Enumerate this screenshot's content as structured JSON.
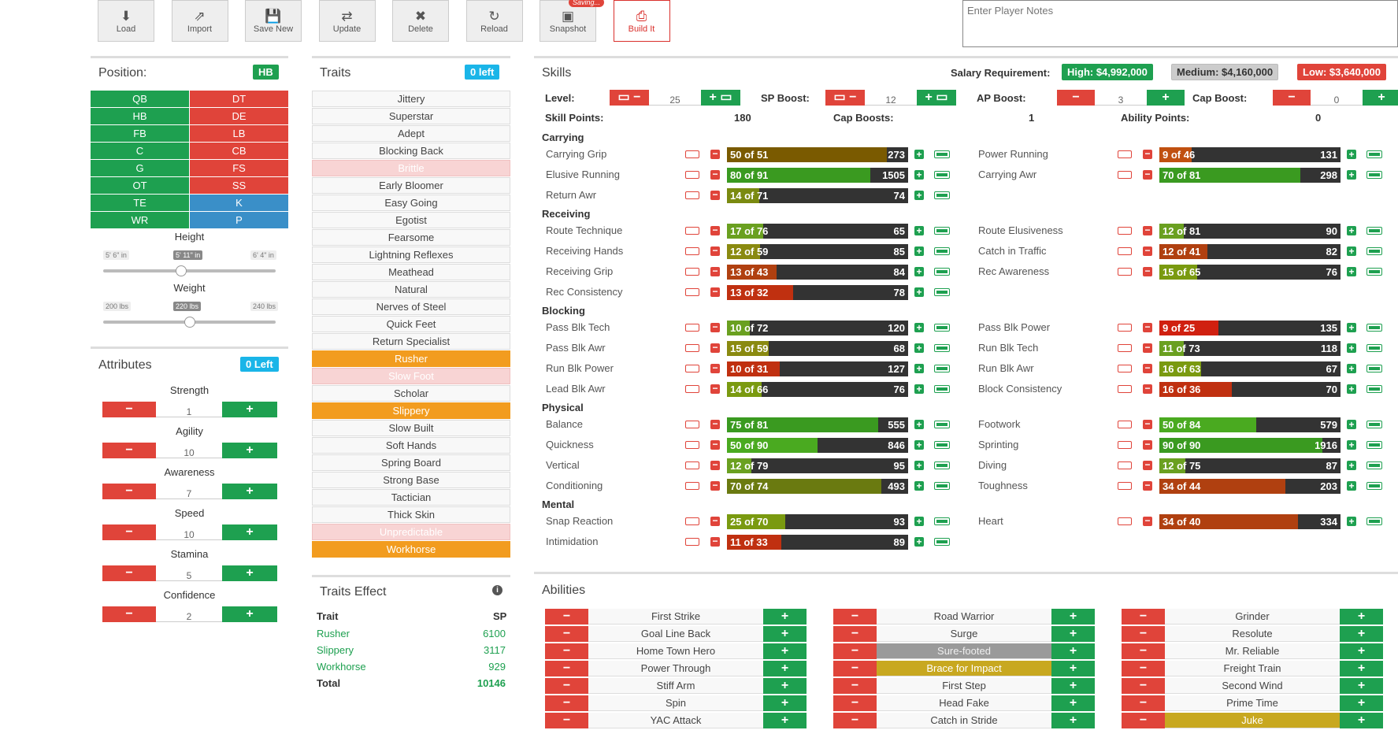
{
  "toolbar": {
    "buttons": [
      {
        "name": "load-button",
        "icon": "download-icon",
        "glyph": "⬇",
        "label": "Load"
      },
      {
        "name": "import-button",
        "icon": "share-icon",
        "glyph": "⇗",
        "label": "Import"
      },
      {
        "name": "save-new-button",
        "icon": "save-icon",
        "glyph": "💾",
        "label": "Save New"
      },
      {
        "name": "update-button",
        "icon": "retweet-icon",
        "glyph": "⇄",
        "label": "Update"
      },
      {
        "name": "delete-button",
        "icon": "close-icon",
        "glyph": "✖",
        "label": "Delete"
      },
      {
        "name": "reload-button",
        "icon": "reload-icon",
        "glyph": "↻",
        "label": "Reload"
      },
      {
        "name": "snapshot-button",
        "icon": "image-icon",
        "glyph": "▣",
        "label": "Snapshot"
      },
      {
        "name": "build-it-button",
        "icon": "print-icon",
        "glyph": "⎙",
        "label": "Build It"
      }
    ],
    "saving_badge": "Saving...",
    "notes_placeholder": "Enter Player Notes"
  },
  "position": {
    "title": "Position:",
    "selected": "HB",
    "grid": [
      [
        "QB",
        "DT"
      ],
      [
        "HB",
        "DE"
      ],
      [
        "FB",
        "LB"
      ],
      [
        "C",
        "CB"
      ],
      [
        "G",
        "FS"
      ],
      [
        "OT",
        "SS"
      ],
      [
        "TE",
        "K"
      ],
      [
        "WR",
        "P"
      ]
    ],
    "height": {
      "label": "Height",
      "min": "5' 6\" in",
      "value": "5' 11\" in",
      "max": "6' 4\" in",
      "fraction": 0.45
    },
    "weight": {
      "label": "Weight",
      "min": "200 lbs",
      "value": "220 lbs",
      "max": "240 lbs",
      "fraction": 0.5
    }
  },
  "attributes": {
    "title": "Attributes",
    "left": "0 Left",
    "items": [
      {
        "label": "Strength",
        "value": "1"
      },
      {
        "label": "Agility",
        "value": "10"
      },
      {
        "label": "Awareness",
        "value": "7"
      },
      {
        "label": "Speed",
        "value": "10"
      },
      {
        "label": "Stamina",
        "value": "5"
      },
      {
        "label": "Confidence",
        "value": "2"
      }
    ]
  },
  "traits": {
    "title": "Traits",
    "left": "0 left",
    "items": [
      {
        "label": "Jittery",
        "state": ""
      },
      {
        "label": "Superstar",
        "state": ""
      },
      {
        "label": "Adept",
        "state": ""
      },
      {
        "label": "Blocking Back",
        "state": ""
      },
      {
        "label": "Brittle",
        "state": "dis"
      },
      {
        "label": "Early Bloomer",
        "state": ""
      },
      {
        "label": "Easy Going",
        "state": ""
      },
      {
        "label": "Egotist",
        "state": ""
      },
      {
        "label": "Fearsome",
        "state": ""
      },
      {
        "label": "Lightning Reflexes",
        "state": ""
      },
      {
        "label": "Meathead",
        "state": ""
      },
      {
        "label": "Natural",
        "state": ""
      },
      {
        "label": "Nerves of Steel",
        "state": ""
      },
      {
        "label": "Quick Feet",
        "state": ""
      },
      {
        "label": "Return Specialist",
        "state": ""
      },
      {
        "label": "Rusher",
        "state": "on"
      },
      {
        "label": "Slow Foot",
        "state": "dis"
      },
      {
        "label": "Scholar",
        "state": ""
      },
      {
        "label": "Slippery",
        "state": "on"
      },
      {
        "label": "Slow Built",
        "state": ""
      },
      {
        "label": "Soft Hands",
        "state": ""
      },
      {
        "label": "Spring Board",
        "state": ""
      },
      {
        "label": "Strong Base",
        "state": ""
      },
      {
        "label": "Tactician",
        "state": ""
      },
      {
        "label": "Thick Skin",
        "state": ""
      },
      {
        "label": "Unpredictable",
        "state": "dis"
      },
      {
        "label": "Workhorse",
        "state": "on"
      }
    ]
  },
  "traits_effect": {
    "title": "Traits Effect",
    "col_trait": "Trait",
    "col_sp": "SP",
    "rows": [
      {
        "trait": "Rusher",
        "sp": "6100"
      },
      {
        "trait": "Slippery",
        "sp": "3117"
      },
      {
        "trait": "Workhorse",
        "sp": "929"
      }
    ],
    "total_label": "Total",
    "total": "10146"
  },
  "skills": {
    "title": "Skills",
    "salary_label": "Salary Requirement:",
    "high": "High: $4,992,000",
    "medium": "Medium: $4,160,000",
    "low": "Low: $3,640,000",
    "level_label": "Level:",
    "level": "25",
    "sp_boost_label": "SP Boost:",
    "sp_boost": "12",
    "ap_boost_label": "AP Boost:",
    "ap_boost": "3",
    "cap_boost_label": "Cap Boost:",
    "cap_boost": "0",
    "skill_points_label": "Skill Points:",
    "skill_points": "180",
    "cap_boosts_label": "Cap Boosts:",
    "cap_boosts": "1",
    "ability_points_label": "Ability Points:",
    "ability_points": "0",
    "groups": [
      {
        "name": "Carrying",
        "left": [
          {
            "n": "Carrying Grip",
            "c": 50,
            "m": 51,
            "v": "273",
            "col": "#7a5a00"
          },
          {
            "n": "Elusive Running",
            "c": 80,
            "m": 91,
            "v": "1505",
            "col": "#3a9a20"
          },
          {
            "n": "Return Awr",
            "c": 14,
            "m": 71,
            "v": "74",
            "col": "#7a8a10"
          }
        ],
        "right": [
          {
            "n": "Power Running",
            "c": 9,
            "m": 46,
            "v": "131",
            "col": "#c05010"
          },
          {
            "n": "Carrying Awr",
            "c": 70,
            "m": 81,
            "v": "298",
            "col": "#3a9a20"
          }
        ]
      },
      {
        "name": "Receiving",
        "left": [
          {
            "n": "Route Technique",
            "c": 17,
            "m": 76,
            "v": "65",
            "col": "#6aa020"
          },
          {
            "n": "Receiving Hands",
            "c": 12,
            "m": 59,
            "v": "85",
            "col": "#8a8a10"
          },
          {
            "n": "Receiving Grip",
            "c": 13,
            "m": 43,
            "v": "84",
            "col": "#b04010"
          },
          {
            "n": "Rec Consistency",
            "c": 13,
            "m": 32,
            "v": "78",
            "col": "#c03010"
          }
        ],
        "right": [
          {
            "n": "Route Elusiveness",
            "c": 12,
            "m": 81,
            "v": "90",
            "col": "#6aa020"
          },
          {
            "n": "Catch in Traffic",
            "c": 12,
            "m": 41,
            "v": "82",
            "col": "#b04010"
          },
          {
            "n": "Rec Awareness",
            "c": 15,
            "m": 65,
            "v": "76",
            "col": "#7a9a10"
          }
        ]
      },
      {
        "name": "Blocking",
        "left": [
          {
            "n": "Pass Blk Tech",
            "c": 10,
            "m": 72,
            "v": "120",
            "col": "#6aa020"
          },
          {
            "n": "Pass Blk Awr",
            "c": 15,
            "m": 59,
            "v": "68",
            "col": "#8a8a10"
          },
          {
            "n": "Run Blk Power",
            "c": 10,
            "m": 31,
            "v": "127",
            "col": "#c03010"
          },
          {
            "n": "Lead Blk Awr",
            "c": 14,
            "m": 66,
            "v": "76",
            "col": "#7a9a10"
          }
        ],
        "right": [
          {
            "n": "Pass Blk Power",
            "c": 9,
            "m": 25,
            "v": "135",
            "col": "#d02010"
          },
          {
            "n": "Run Blk Tech",
            "c": 11,
            "m": 73,
            "v": "118",
            "col": "#6aa020"
          },
          {
            "n": "Run Blk Awr",
            "c": 16,
            "m": 63,
            "v": "67",
            "col": "#7a9a10"
          },
          {
            "n": "Block Consistency",
            "c": 16,
            "m": 36,
            "v": "70",
            "col": "#c03010"
          }
        ]
      },
      {
        "name": "Physical",
        "left": [
          {
            "n": "Balance",
            "c": 75,
            "m": 81,
            "v": "555",
            "col": "#3a9a20"
          },
          {
            "n": "Quickness",
            "c": 50,
            "m": 90,
            "v": "846",
            "col": "#4aaa20"
          },
          {
            "n": "Vertical",
            "c": 12,
            "m": 79,
            "v": "95",
            "col": "#6aa020"
          },
          {
            "n": "Conditioning",
            "c": 70,
            "m": 74,
            "v": "493",
            "col": "#6a7a10"
          }
        ],
        "right": [
          {
            "n": "Footwork",
            "c": 50,
            "m": 84,
            "v": "579",
            "col": "#4aaa20"
          },
          {
            "n": "Sprinting",
            "c": 90,
            "m": 90,
            "v": "1916",
            "col": "#3a9a20"
          },
          {
            "n": "Diving",
            "c": 12,
            "m": 75,
            "v": "87",
            "col": "#6aa020"
          },
          {
            "n": "Toughness",
            "c": 34,
            "m": 44,
            "v": "203",
            "col": "#b04010"
          }
        ]
      },
      {
        "name": "Mental",
        "left": [
          {
            "n": "Snap Reaction",
            "c": 25,
            "m": 70,
            "v": "93",
            "col": "#7a9a10"
          },
          {
            "n": "Intimidation",
            "c": 11,
            "m": 33,
            "v": "89",
            "col": "#c03010"
          }
        ],
        "right": [
          {
            "n": "Heart",
            "c": 34,
            "m": 40,
            "v": "334",
            "col": "#b04010"
          }
        ]
      }
    ]
  },
  "abilities": {
    "title": "Abilities",
    "cols": [
      [
        {
          "n": "First Strike",
          "s": ""
        },
        {
          "n": "Goal Line Back",
          "s": ""
        },
        {
          "n": "Home Town Hero",
          "s": ""
        },
        {
          "n": "Power Through",
          "s": ""
        },
        {
          "n": "Stiff Arm",
          "s": ""
        },
        {
          "n": "Spin",
          "s": ""
        },
        {
          "n": "YAC Attack",
          "s": ""
        }
      ],
      [
        {
          "n": "Road Warrior",
          "s": ""
        },
        {
          "n": "Surge",
          "s": ""
        },
        {
          "n": "Sure-footed",
          "s": "gray"
        },
        {
          "n": "Brace for Impact",
          "s": "gold"
        },
        {
          "n": "First Step",
          "s": ""
        },
        {
          "n": "Head Fake",
          "s": ""
        },
        {
          "n": "Catch in Stride",
          "s": ""
        }
      ],
      [
        {
          "n": "Grinder",
          "s": ""
        },
        {
          "n": "Resolute",
          "s": ""
        },
        {
          "n": "Mr. Reliable",
          "s": ""
        },
        {
          "n": "Freight Train",
          "s": ""
        },
        {
          "n": "Second Wind",
          "s": ""
        },
        {
          "n": "Prime Time",
          "s": ""
        },
        {
          "n": "Juke",
          "s": "gold"
        }
      ]
    ]
  },
  "colors": {
    "green": "#1ea050",
    "red": "#e0443a",
    "blue": "#3a8fc8",
    "cyan": "#1ab5e8",
    "orange": "#f29c1f"
  }
}
